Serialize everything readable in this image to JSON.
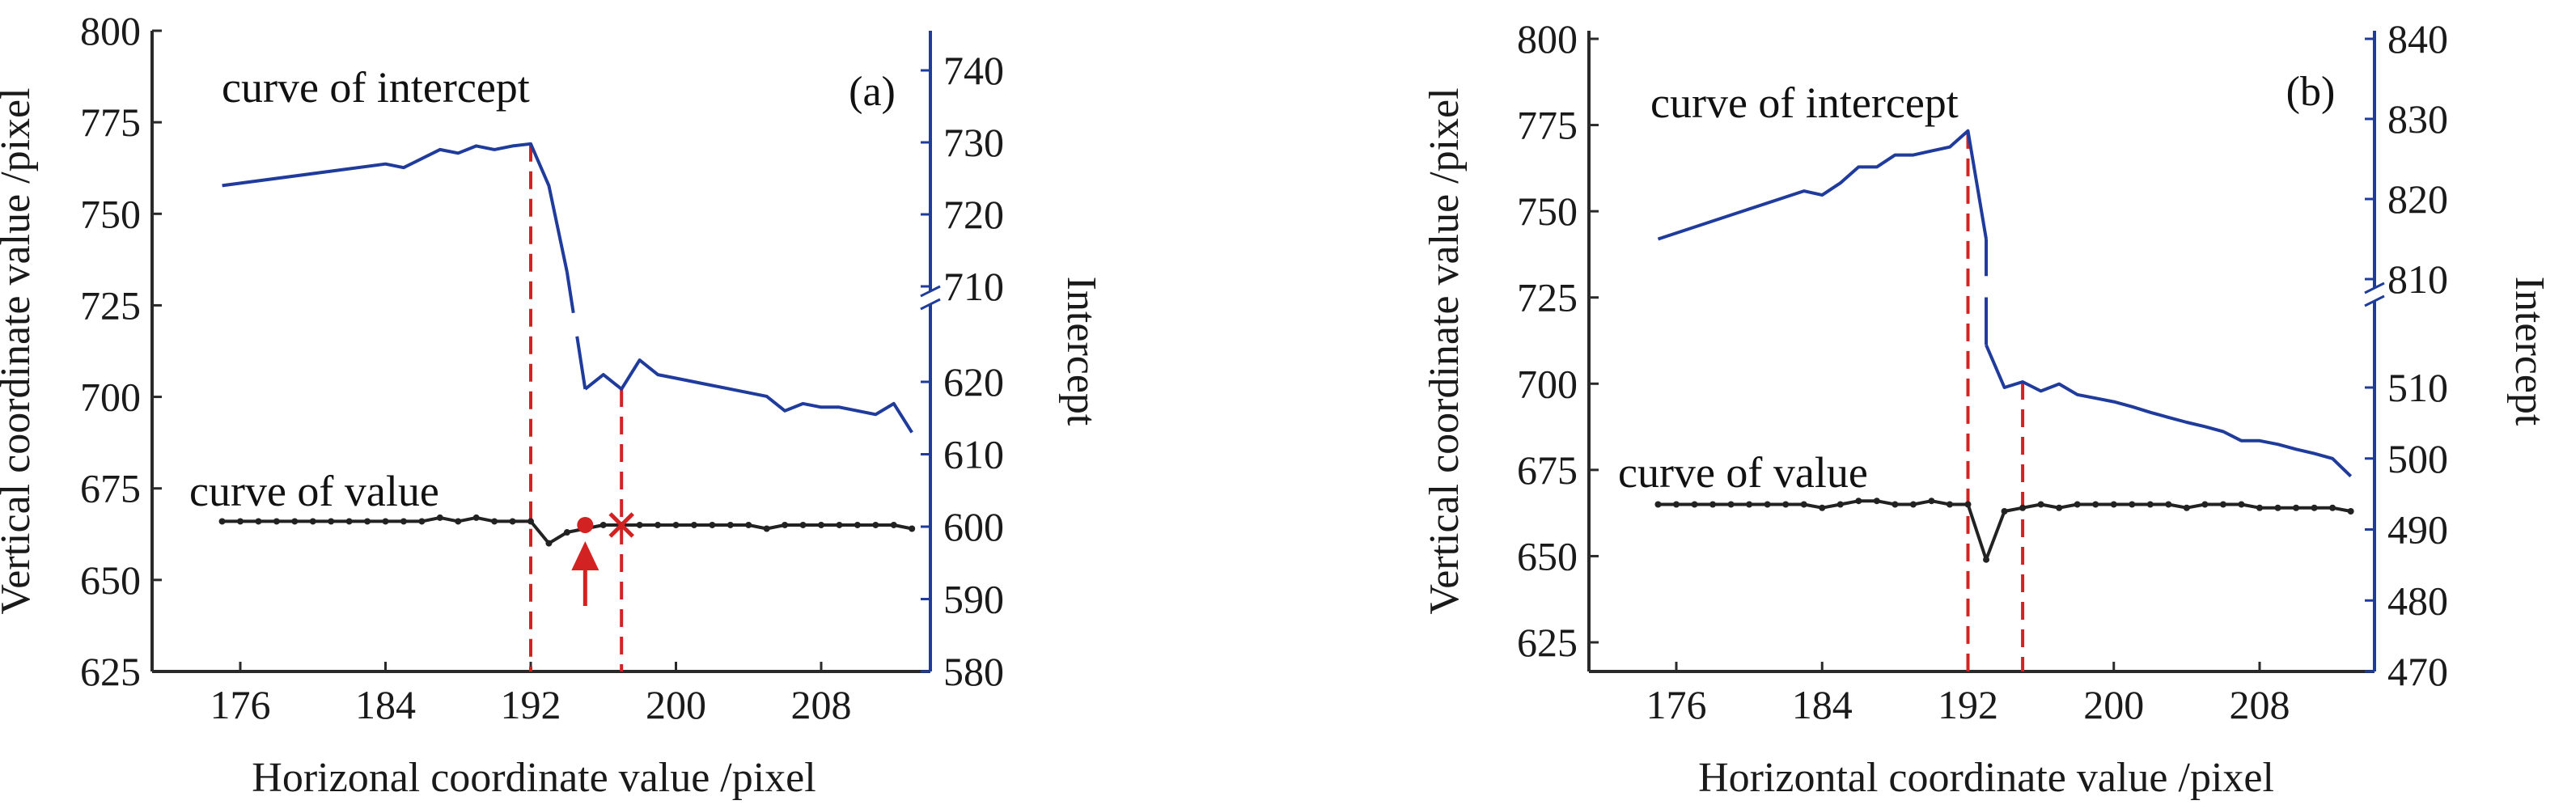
{
  "chart_data": [
    {
      "type": "line",
      "panel_label": "(a)",
      "xlabel": "Horizonal coordinate value /pixel",
      "ylabel": "Vertical coordinate value /pixel",
      "y2label": "Intercept",
      "x_ticks": [
        176,
        184,
        192,
        200,
        208
      ],
      "xlim": [
        170,
        216
      ],
      "ylim": [
        625,
        800
      ],
      "y_ticks": [
        625,
        650,
        675,
        700,
        725,
        750,
        775,
        800
      ],
      "y2_ticks": [
        580,
        590,
        600,
        610,
        620,
        710,
        720,
        730,
        740
      ],
      "y2_break": true,
      "series": [
        {
          "name": "curve of intercept",
          "axis": "right",
          "segments": [
            {
              "x": [
                175,
                184,
                185,
                187,
                188,
                189,
                190,
                191,
                192,
                193,
                194
              ],
              "y": [
                724,
                727,
                726.5,
                729,
                728.5,
                729.5,
                729,
                729.5,
                729.8,
                724,
                712
              ]
            },
            {
              "x": [
                195,
                196,
                197,
                198,
                199,
                200,
                201,
                202,
                203,
                204,
                205,
                206,
                207,
                208,
                209,
                210,
                211,
                212,
                213
              ],
              "y": [
                619,
                621,
                619,
                623,
                621,
                620.5,
                620,
                619.5,
                619,
                618.5,
                618,
                616,
                617,
                616.5,
                616.5,
                616,
                615.5,
                617,
                613
              ]
            }
          ],
          "color": "#1f3b9c"
        },
        {
          "name": "curve of value",
          "axis": "left",
          "x": [
            175,
            176,
            177,
            178,
            179,
            180,
            181,
            182,
            183,
            184,
            185,
            186,
            187,
            188,
            189,
            190,
            191,
            192,
            193,
            194,
            195,
            196,
            197,
            198,
            199,
            200,
            201,
            202,
            203,
            204,
            205,
            206,
            207,
            208,
            209,
            210,
            211,
            212,
            213
          ],
          "y": [
            666,
            666,
            666,
            666,
            666,
            666,
            666,
            666,
            666,
            666,
            666,
            666,
            667,
            666,
            667,
            666,
            666,
            666,
            660,
            663,
            664,
            665,
            665,
            665,
            665,
            665,
            665,
            665,
            665,
            665,
            664,
            665,
            665,
            665,
            665,
            665,
            665,
            665,
            664
          ],
          "color": "#222222"
        }
      ],
      "annotations": [
        {
          "text": "curve of intercept"
        },
        {
          "text": "curve of value"
        }
      ],
      "reference_lines_x": [
        192,
        197
      ],
      "markers": [
        {
          "type": "dot",
          "x": 195,
          "y": 665
        },
        {
          "type": "cross",
          "x": 197,
          "y": 665
        },
        {
          "type": "arrow",
          "x": 195,
          "y": 665
        }
      ]
    },
    {
      "type": "line",
      "panel_label": "(b)",
      "xlabel": "Horizontal coordinate value /pixel",
      "ylabel": "Vertical coordinate value /pixel",
      "y2label": "Intercept",
      "x_ticks": [
        176,
        184,
        192,
        200,
        208
      ],
      "xlim": [
        170,
        216
      ],
      "ylim": [
        615,
        800
      ],
      "y_ticks": [
        625,
        650,
        675,
        700,
        725,
        750,
        775,
        800
      ],
      "y2_ticks": [
        470,
        480,
        490,
        500,
        510,
        810,
        820,
        830,
        840
      ],
      "y2_break": true,
      "series": [
        {
          "name": "curve of intercept",
          "axis": "right",
          "segments": [
            {
              "x": [
                175,
                183,
                184,
                185,
                186,
                187,
                188,
                189,
                190,
                191,
                192,
                193
              ],
              "y": [
                815,
                821,
                820.5,
                822,
                824,
                824,
                825.5,
                825.5,
                826,
                826.5,
                828.5,
                815
              ]
            },
            {
              "x": [
                193,
                194,
                195,
                196,
                197,
                198,
                199,
                200,
                201,
                202,
                203,
                204,
                205,
                206,
                207,
                208,
                209,
                210,
                211,
                212,
                213
              ],
              "y": [
                516,
                510,
                510.8,
                509.5,
                510.5,
                509,
                508.5,
                508,
                507.3,
                506.5,
                505.8,
                505.1,
                504.5,
                503.8,
                502.5,
                502.5,
                502,
                501.3,
                500.7,
                500,
                497.5
              ]
            }
          ],
          "color": "#1f3b9c"
        },
        {
          "name": "curve of value",
          "axis": "left",
          "x": [
            175,
            176,
            177,
            178,
            179,
            180,
            181,
            182,
            183,
            184,
            185,
            186,
            187,
            188,
            189,
            190,
            191,
            192,
            193,
            194,
            195,
            196,
            197,
            198,
            199,
            200,
            201,
            202,
            203,
            204,
            205,
            206,
            207,
            208,
            209,
            210,
            211,
            212,
            213
          ],
          "y": [
            665,
            665,
            665,
            665,
            665,
            665,
            665,
            665,
            665,
            664,
            665,
            666,
            666,
            665,
            665,
            666,
            665,
            665,
            649,
            663,
            664,
            665,
            664,
            665,
            665,
            665,
            665,
            665,
            665,
            664,
            665,
            665,
            665,
            664,
            664,
            664,
            664,
            664,
            663
          ],
          "color": "#222222"
        }
      ],
      "annotations": [
        {
          "text": "curve of intercept"
        },
        {
          "text": "curve of value"
        }
      ],
      "reference_lines_x": [
        192,
        195
      ]
    }
  ]
}
